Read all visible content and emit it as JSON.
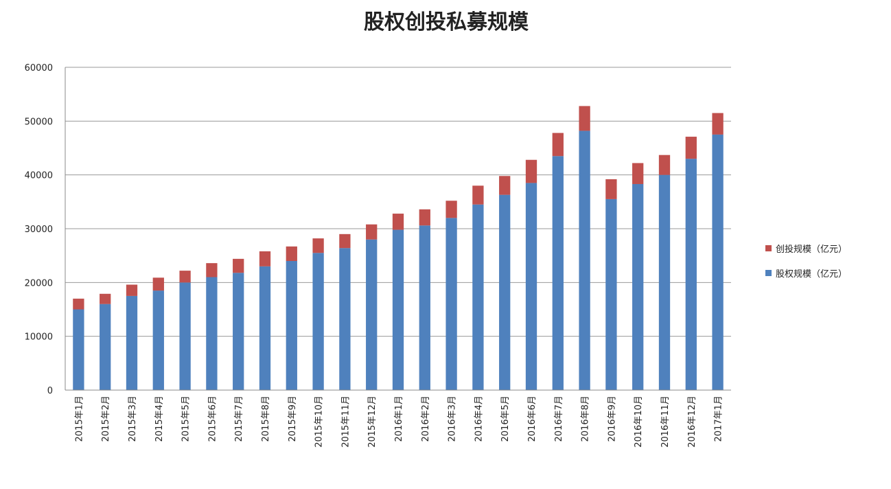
{
  "chart_data": {
    "type": "stacked_bar",
    "title": "股权创投私募规模",
    "categories": [
      "2015年1月",
      "2015年2月",
      "2015年3月",
      "2015年4月",
      "2015年5月",
      "2015年6月",
      "2015年7月",
      "2015年8月",
      "2015年9月",
      "2015年10月",
      "2015年11月",
      "2015年12月",
      "2016年1月",
      "2016年2月",
      "2016年3月",
      "2016年4月",
      "2016年5月",
      "2016年6月",
      "2016年7月",
      "2016年8月",
      "2016年9月",
      "2016年10月",
      "2016年11月",
      "2016年12月",
      "2017年1月"
    ],
    "series": [
      {
        "name": "股权规模（亿元）",
        "color": "#4f81bd",
        "values": [
          15000,
          16000,
          17500,
          18500,
          20000,
          21000,
          21800,
          23000,
          24000,
          25500,
          26400,
          28000,
          29800,
          30600,
          32000,
          34500,
          36300,
          38500,
          43500,
          48200,
          35500,
          38300,
          40000,
          43000,
          47500
        ]
      },
      {
        "name": "创投规模（亿元）",
        "color": "#c0504d",
        "values": [
          2000,
          1900,
          2100,
          2400,
          2200,
          2600,
          2600,
          2800,
          2700,
          2700,
          2600,
          2800,
          3000,
          3000,
          3200,
          3500,
          3500,
          4300,
          4300,
          4600,
          3700,
          3900,
          3700,
          4100,
          4000
        ]
      }
    ],
    "ylim": [
      0,
      60000
    ],
    "yticks": [
      0,
      10000,
      20000,
      30000,
      40000,
      50000,
      60000
    ],
    "grid": true,
    "legend": "right"
  }
}
